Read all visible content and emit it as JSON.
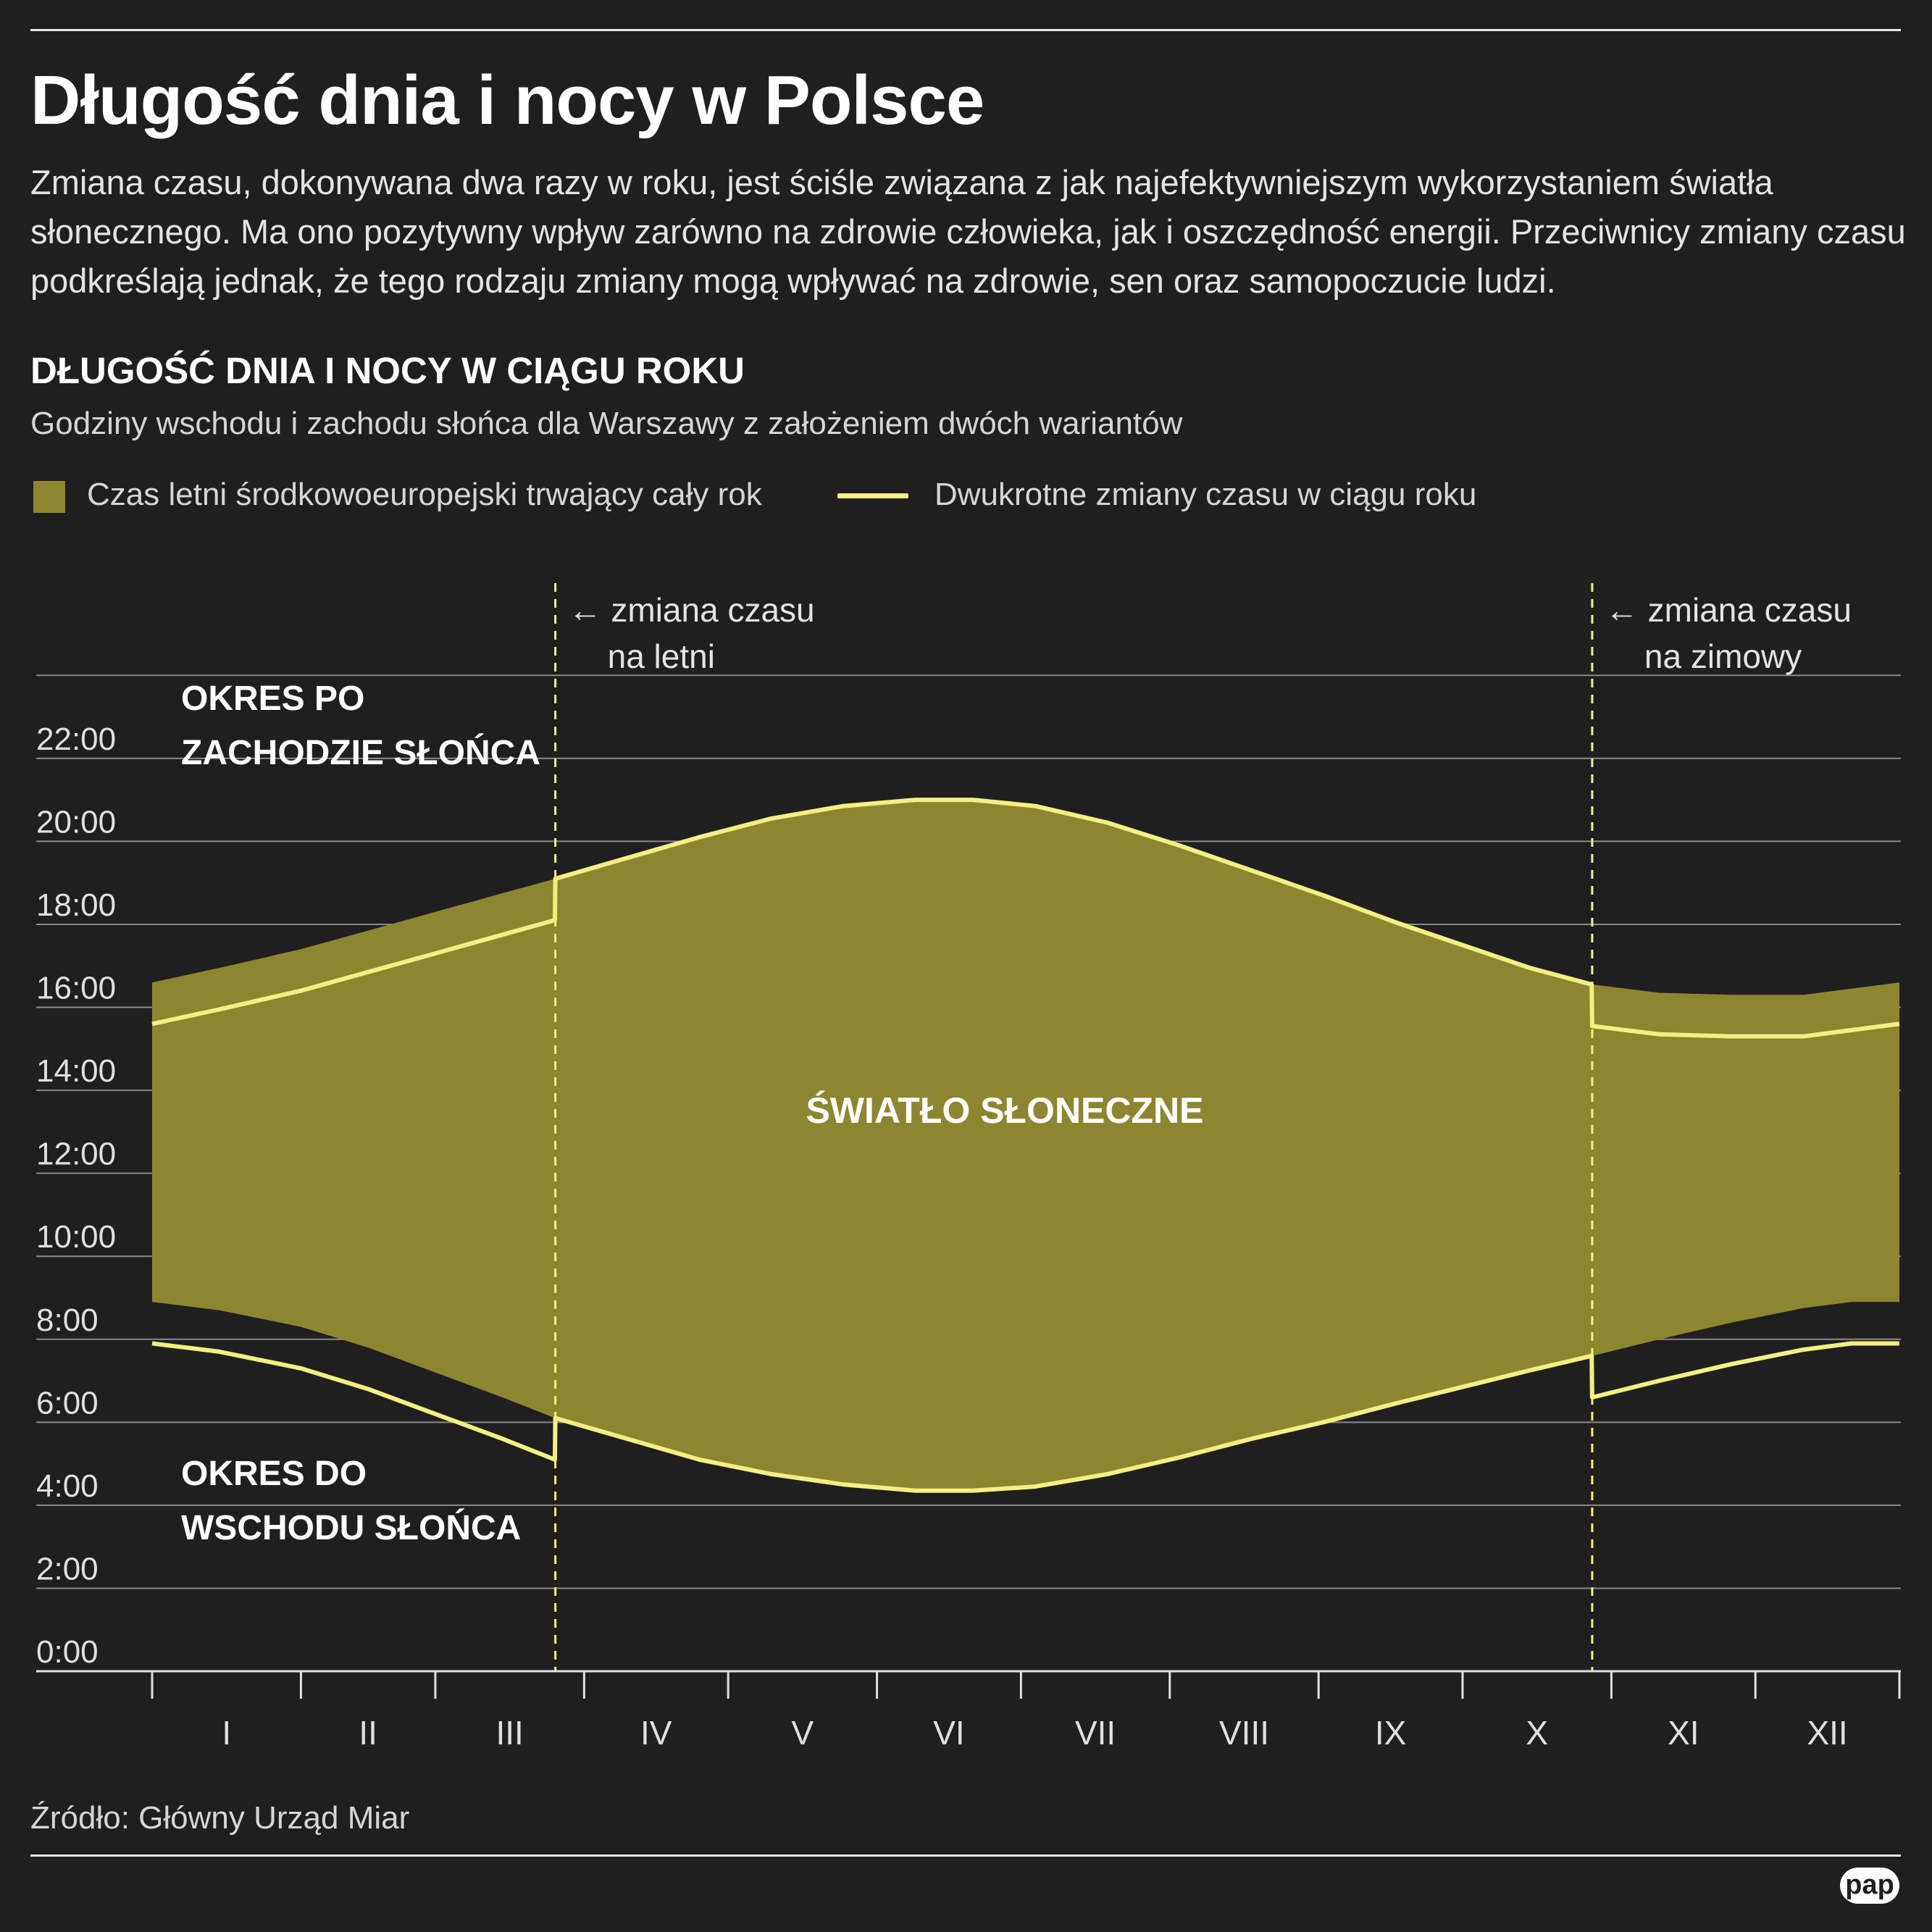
{
  "header": {
    "title": "Długość dnia i nocy w Polsce",
    "intro": "Zmiana czasu, dokonywana dwa razy w roku, jest ściśle związana z jak najefektywniejszym wykorzystaniem światła słonecznego. Ma ono pozytywny wpływ zarówno na zdrowie człowieka, jak i oszczędność energii. Przeciwnicy zmiany czasu podkreślają jednak, że tego rodzaju zmiany mogą wpływać na zdrowie, sen oraz samopoczucie ludzi."
  },
  "legend": {
    "area_label": "Czas letni środkowoeuropejski trwający cały rok",
    "line_label": "Dwukrotne zmiany czasu w ciągu roku"
  },
  "colors": {
    "background": "#1f1f1f",
    "area": "#8c8630",
    "line": "#f4ef82",
    "grid": "#8a8a8a"
  },
  "source": "Źródło: Główny Urząd Miar",
  "logo_text": "pap",
  "chart_data": {
    "type": "area",
    "title": "DŁUGOŚĆ DNIA I NOCY W CIĄGU ROKU",
    "subtitle": "Godziny wschodu i zachodu słońca dla Warszawy z założeniem dwóch wariantów",
    "ylim": [
      0,
      24
    ],
    "y_ticks": [
      0,
      2,
      4,
      6,
      8,
      10,
      12,
      14,
      16,
      18,
      20,
      22
    ],
    "y_tick_labels": [
      "0:00",
      "2:00",
      "4:00",
      "6:00",
      "8:00",
      "10:00",
      "12:00",
      "14:00",
      "16:00",
      "18:00",
      "20:00",
      "22:00"
    ],
    "x_unit": "day_of_year",
    "xlim": [
      1,
      365
    ],
    "month_ticks": [
      1,
      32,
      60,
      91,
      121,
      152,
      182,
      213,
      244,
      274,
      305,
      335,
      365
    ],
    "categories": [
      "I",
      "II",
      "III",
      "IV",
      "V",
      "VI",
      "VII",
      "VIII",
      "IX",
      "X",
      "XI",
      "XII"
    ],
    "dst_start_day": 85,
    "dst_end_day": 301,
    "series": [
      {
        "name": "Czas letni środkowoeuropejski trwający cały rok",
        "kind": "band",
        "x": [
          1,
          15,
          32,
          46,
          60,
          74,
          85,
          100,
          115,
          130,
          145,
          160,
          172,
          185,
          200,
          215,
          230,
          245,
          260,
          274,
          288,
          301,
          315,
          330,
          345,
          355,
          365
        ],
        "sunrise": [
          8.9,
          8.7,
          8.3,
          7.8,
          7.2,
          6.6,
          6.1,
          5.6,
          5.1,
          4.75,
          4.5,
          4.35,
          4.35,
          4.45,
          4.75,
          5.15,
          5.6,
          6.0,
          6.45,
          6.85,
          7.25,
          7.6,
          8.0,
          8.4,
          8.75,
          8.9,
          8.9
        ],
        "sunset": [
          16.6,
          16.95,
          17.4,
          17.85,
          18.3,
          18.75,
          19.1,
          19.6,
          20.1,
          20.55,
          20.85,
          21.0,
          21.0,
          20.85,
          20.45,
          19.9,
          19.3,
          18.7,
          18.05,
          17.5,
          16.95,
          16.55,
          16.35,
          16.3,
          16.3,
          16.45,
          16.6
        ]
      },
      {
        "name": "Dwukrotne zmiany czasu w ciągu roku",
        "kind": "line",
        "x": [
          1,
          15,
          32,
          46,
          60,
          74,
          84.9,
          85,
          100,
          115,
          130,
          145,
          160,
          172,
          185,
          200,
          215,
          230,
          245,
          260,
          274,
          288,
          300.9,
          301,
          315,
          330,
          345,
          355,
          365
        ],
        "sunrise": [
          7.9,
          7.7,
          7.3,
          6.8,
          6.2,
          5.6,
          5.1,
          6.1,
          5.6,
          5.1,
          4.75,
          4.5,
          4.35,
          4.35,
          4.45,
          4.75,
          5.15,
          5.6,
          6.0,
          6.45,
          6.85,
          7.25,
          7.6,
          6.6,
          7.0,
          7.4,
          7.75,
          7.9,
          7.9
        ],
        "sunset": [
          15.6,
          15.95,
          16.4,
          16.85,
          17.3,
          17.75,
          18.1,
          19.1,
          19.6,
          20.1,
          20.55,
          20.85,
          21.0,
          21.0,
          20.85,
          20.45,
          19.9,
          19.3,
          18.7,
          18.05,
          17.5,
          16.95,
          16.55,
          15.55,
          15.35,
          15.3,
          15.3,
          15.45,
          15.6
        ]
      }
    ],
    "annotations": {
      "dst_start": [
        "← zmiana czasu",
        "na letni"
      ],
      "dst_end": [
        "← zmiana czasu",
        "na zimowy"
      ],
      "evening": [
        "OKRES PO",
        "ZACHODZIE SŁOŃCA"
      ],
      "morning": [
        "OKRES DO",
        "WSCHODU SŁOŃCA"
      ],
      "daylight": "ŚWIATŁO SŁONECZNE"
    }
  }
}
